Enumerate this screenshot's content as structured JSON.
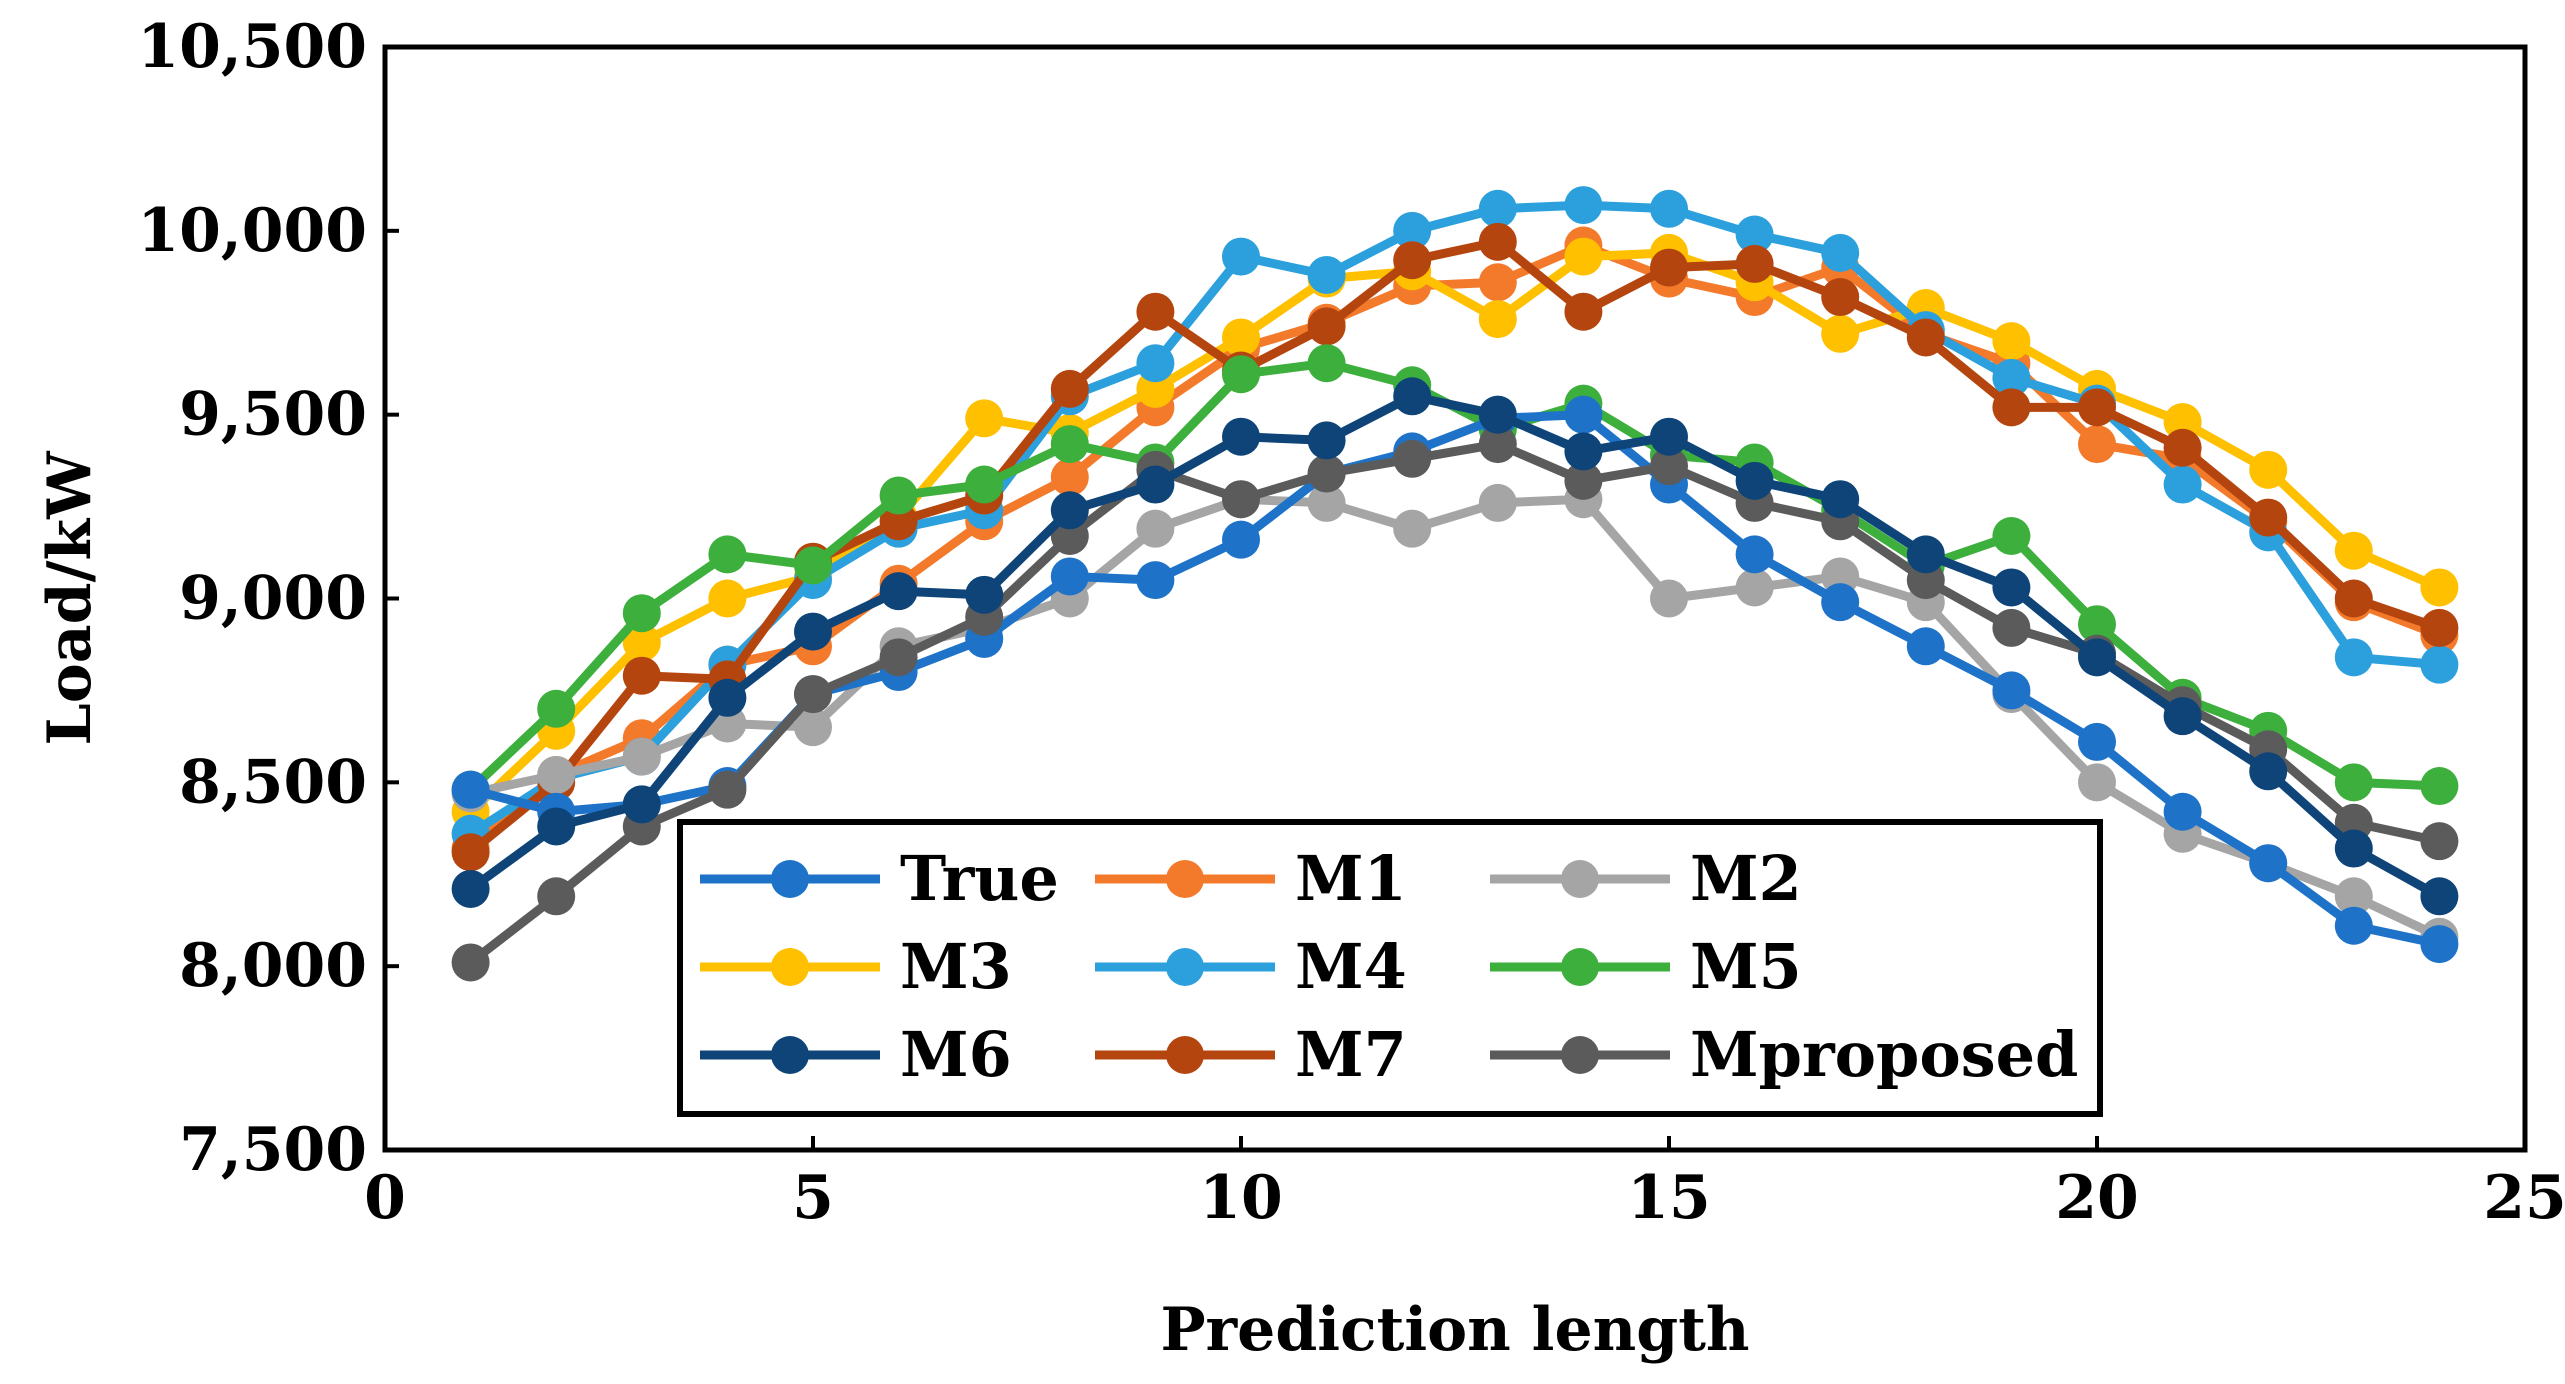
{
  "chart_data": {
    "type": "line",
    "title": "",
    "xlabel": "Prediction length",
    "ylabel": "Load/kW",
    "xlim": [
      0,
      25
    ],
    "ylim": [
      7500,
      10500
    ],
    "xticks": [
      0,
      5,
      10,
      15,
      20,
      25
    ],
    "xtick_labels": [
      "0",
      "5",
      "10",
      "15",
      "20",
      "25"
    ],
    "yticks": [
      7500,
      8000,
      8500,
      9000,
      9500,
      10000,
      10500
    ],
    "ytick_labels": [
      "7,500",
      "8,000",
      "8,500",
      "9,000",
      "9,500",
      "10,000",
      "10,500"
    ],
    "grid": false,
    "legend_position": "lower-center",
    "x": [
      1,
      2,
      3,
      4,
      5,
      6,
      7,
      8,
      9,
      10,
      11,
      12,
      13,
      14,
      15,
      16,
      17,
      18,
      19,
      20,
      21,
      22,
      23,
      24
    ],
    "series": [
      {
        "name": "M1",
        "color": "#F47A2B",
        "values": [
          8320,
          8520,
          8620,
          8820,
          8870,
          9040,
          9210,
          9330,
          9520,
          9680,
          9750,
          9850,
          9860,
          9960,
          9870,
          9820,
          9900,
          9720,
          9640,
          9420,
          9380,
          9210,
          8990,
          8900
        ]
      },
      {
        "name": "M3",
        "color": "#FFC000",
        "values": [
          8420,
          8640,
          8880,
          9000,
          9060,
          9220,
          9490,
          9450,
          9570,
          9710,
          9870,
          9890,
          9760,
          9930,
          9940,
          9860,
          9720,
          9790,
          9700,
          9570,
          9480,
          9350,
          9130,
          9030
        ]
      },
      {
        "name": "M4",
        "color": "#2CA0DC",
        "values": [
          8360,
          8510,
          8570,
          8820,
          9050,
          9190,
          9240,
          9550,
          9640,
          9930,
          9880,
          10000,
          10060,
          10070,
          10060,
          9990,
          9940,
          9730,
          9600,
          9530,
          9310,
          9180,
          8840,
          8820
        ]
      },
      {
        "name": "M7",
        "color": "#B5450E",
        "values": [
          8310,
          8500,
          8790,
          8780,
          9100,
          9210,
          9280,
          9570,
          9780,
          9620,
          9740,
          9920,
          9970,
          9780,
          9900,
          9910,
          9820,
          9710,
          9520,
          9520,
          9410,
          9220,
          9000,
          8920
        ]
      },
      {
        "name": "M2",
        "color": "#A5A5A5",
        "values": [
          8470,
          8520,
          8570,
          8660,
          8650,
          8870,
          8920,
          9000,
          9190,
          9270,
          9260,
          9190,
          9260,
          9270,
          9000,
          9030,
          9060,
          8990,
          8740,
          8500,
          8360,
          8280,
          8190,
          8080
        ]
      },
      {
        "name": "M5",
        "color": "#3DAF3D",
        "values": [
          8480,
          8700,
          8960,
          9120,
          9090,
          9280,
          9310,
          9420,
          9370,
          9610,
          9640,
          9580,
          9460,
          9530,
          9390,
          9370,
          9240,
          9090,
          9170,
          8930,
          8730,
          8640,
          8500,
          8490
        ]
      },
      {
        "name": "True",
        "color": "#1E73C9",
        "values": [
          8480,
          8420,
          8440,
          8490,
          8740,
          8800,
          8890,
          9060,
          9050,
          9160,
          9340,
          9400,
          9490,
          9500,
          9310,
          9120,
          8990,
          8870,
          8750,
          8610,
          8420,
          8280,
          8110,
          8060
        ]
      },
      {
        "name": "Mproposed",
        "color": "#5B5B5B",
        "values": [
          8010,
          8190,
          8380,
          8480,
          8740,
          8840,
          8950,
          9170,
          9350,
          9270,
          9340,
          9380,
          9420,
          9320,
          9360,
          9260,
          9210,
          9050,
          8920,
          8850,
          8710,
          8590,
          8390,
          8340
        ]
      },
      {
        "name": "M6",
        "color": "#0E4478",
        "values": [
          8210,
          8380,
          8440,
          8730,
          8910,
          9020,
          9010,
          9240,
          9310,
          9440,
          9430,
          9550,
          9500,
          9400,
          9440,
          9320,
          9270,
          9120,
          9030,
          8840,
          8680,
          8530,
          8320,
          8190
        ]
      }
    ],
    "legend": [
      {
        "name": "True",
        "color": "#1E73C9"
      },
      {
        "name": "M1",
        "color": "#F47A2B"
      },
      {
        "name": "M2",
        "color": "#A5A5A5"
      },
      {
        "name": "M3",
        "color": "#FFC000"
      },
      {
        "name": "M4",
        "color": "#2CA0DC"
      },
      {
        "name": "M5",
        "color": "#3DAF3D"
      },
      {
        "name": "M6",
        "color": "#0E4478"
      },
      {
        "name": "M7",
        "color": "#B5450E"
      },
      {
        "name": "Mproposed",
        "color": "#5B5B5B"
      }
    ],
    "legend_label_prefix": [
      "",
      "",
      "",
      "",
      "",
      "",
      "",
      "",
      " "
    ]
  }
}
